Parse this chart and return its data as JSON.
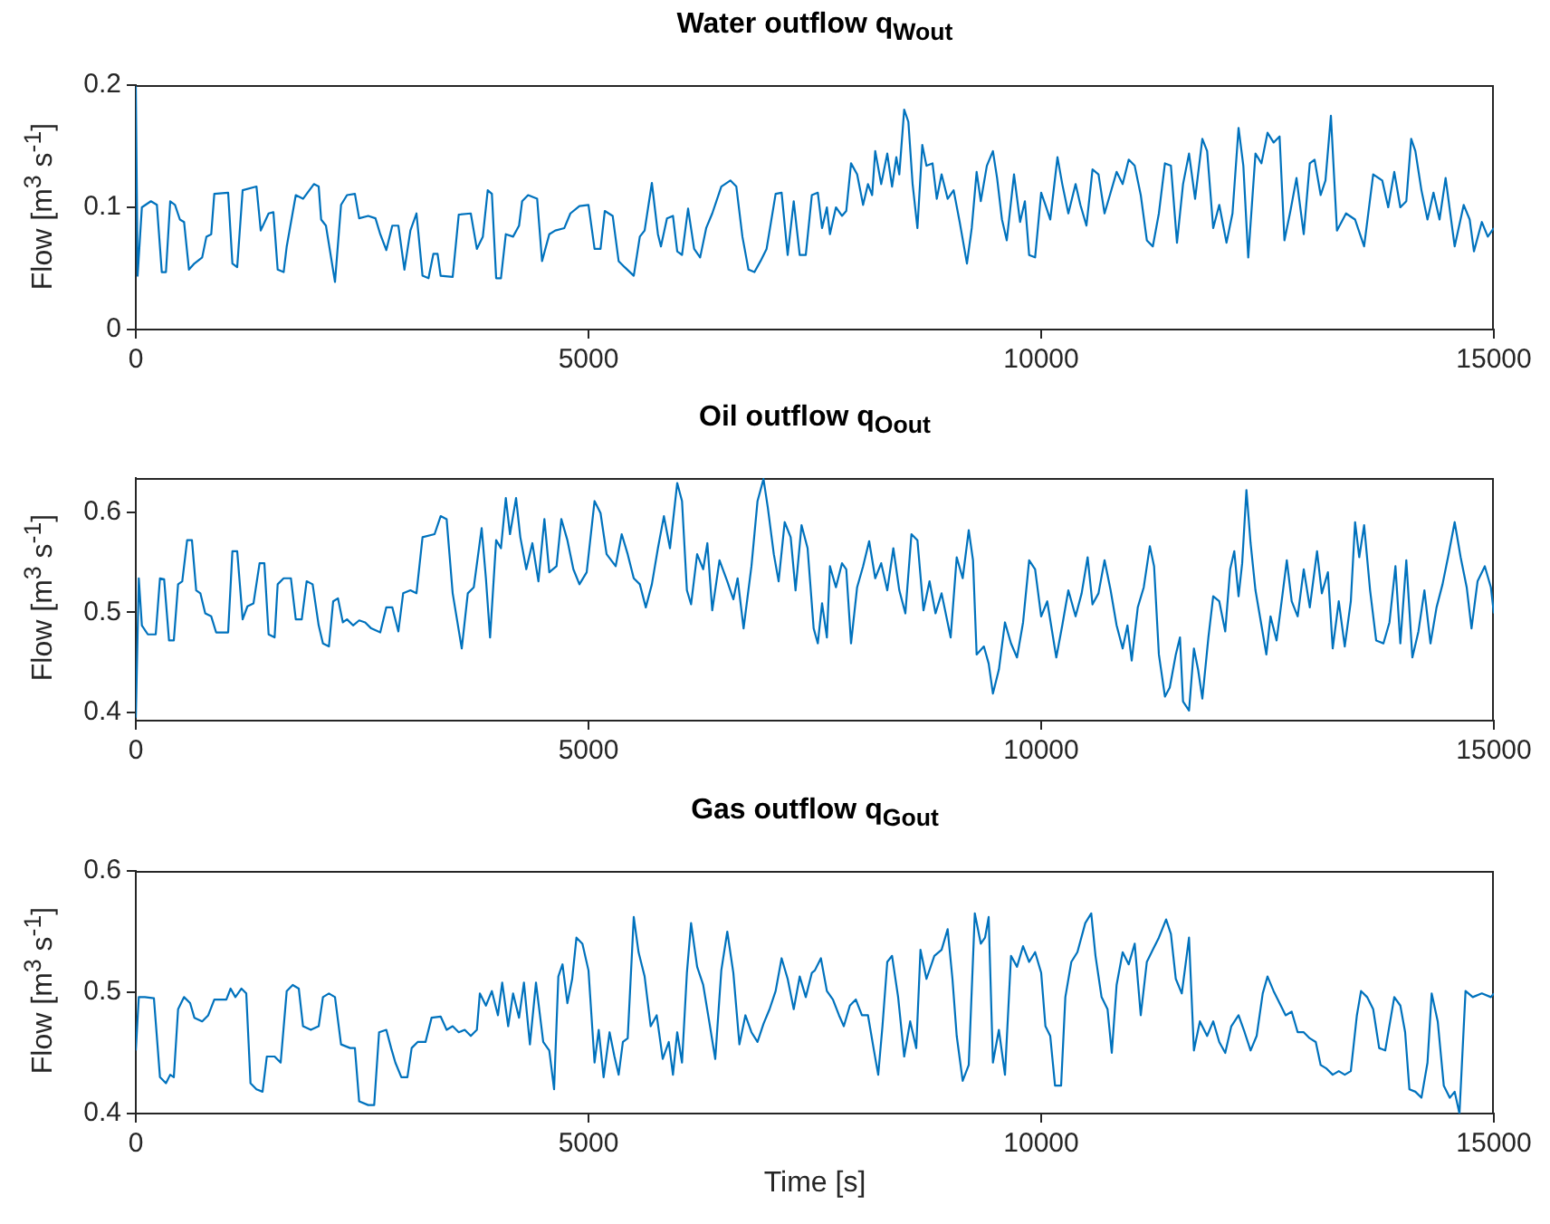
{
  "chart_data": [
    {
      "type": "line",
      "title": "Water outflow q$_{Wout}$",
      "ylabel": "Flow [m$^{3}$ s$^{-1}$]",
      "color": "#0072bd",
      "xlim": [
        0,
        15000
      ],
      "xticks": [
        0,
        5000,
        10000,
        15000
      ],
      "ylim": [
        0,
        0.2
      ],
      "yticks": [
        0,
        0.1,
        0.2
      ],
      "grid": false,
      "x": [
        0,
        20,
        67,
        167,
        233,
        287,
        333,
        380,
        433,
        487,
        533,
        587,
        647,
        733,
        780,
        833,
        867,
        1020,
        1067,
        1120,
        1180,
        1333,
        1380,
        1467,
        1520,
        1567,
        1633,
        1667,
        1767,
        1847,
        1967,
        2020,
        2047,
        2100,
        2200,
        2267,
        2333,
        2420,
        2467,
        2567,
        2647,
        2700,
        2767,
        2833,
        2900,
        2967,
        3033,
        3100,
        3167,
        3233,
        3287,
        3333,
        3367,
        3500,
        3567,
        3700,
        3767,
        3833,
        3887,
        3933,
        3980,
        4033,
        4087,
        4167,
        4233,
        4267,
        4333,
        4433,
        4487,
        4567,
        4633,
        4733,
        4800,
        4900,
        5000,
        5067,
        5133,
        5180,
        5267,
        5333,
        5400,
        5500,
        5567,
        5620,
        5700,
        5767,
        5800,
        5867,
        5933,
        5980,
        6033,
        6100,
        6167,
        6233,
        6300,
        6367,
        6467,
        6567,
        6633,
        6700,
        6767,
        6833,
        6900,
        6967,
        7067,
        7133,
        7200,
        7267,
        7333,
        7400,
        7467,
        7533,
        7580,
        7633,
        7667,
        7733,
        7800,
        7847,
        7900,
        7967,
        8033,
        8087,
        8133,
        8167,
        8233,
        8300,
        8353,
        8400,
        8433,
        8487,
        8533,
        8580,
        8633,
        8687,
        8733,
        8800,
        8847,
        8900,
        8967,
        9033,
        9100,
        9180,
        9233,
        9287,
        9333,
        9400,
        9467,
        9513,
        9567,
        9620,
        9700,
        9767,
        9820,
        9867,
        9933,
        10000,
        10047,
        10100,
        10180,
        10233,
        10300,
        10380,
        10433,
        10500,
        10567,
        10633,
        10700,
        10767,
        10833,
        10900,
        10967,
        11033,
        11100,
        11167,
        11233,
        11300,
        11367,
        11433,
        11500,
        11567,
        11633,
        11700,
        11780,
        11833,
        11900,
        11967,
        12047,
        12113,
        12180,
        12233,
        12287,
        12367,
        12433,
        12500,
        12567,
        12633,
        12687,
        12753,
        12820,
        12900,
        12967,
        13020,
        13087,
        13140,
        13200,
        13267,
        13367,
        13467,
        13567,
        13667,
        13767,
        13833,
        13900,
        13967,
        14033,
        14087,
        14133,
        14200,
        14267,
        14333,
        14400,
        14467,
        14567,
        14667,
        14733,
        14780,
        14867,
        14933,
        15000
      ],
      "values": [
        0.199,
        0.044,
        0.1,
        0.105,
        0.102,
        0.047,
        0.047,
        0.105,
        0.102,
        0.09,
        0.088,
        0.049,
        0.054,
        0.059,
        0.076,
        0.078,
        0.111,
        0.112,
        0.054,
        0.051,
        0.114,
        0.117,
        0.081,
        0.095,
        0.096,
        0.049,
        0.047,
        0.068,
        0.11,
        0.107,
        0.119,
        0.117,
        0.09,
        0.085,
        0.039,
        0.102,
        0.11,
        0.111,
        0.091,
        0.093,
        0.091,
        0.078,
        0.065,
        0.085,
        0.085,
        0.049,
        0.081,
        0.095,
        0.044,
        0.042,
        0.062,
        0.062,
        0.044,
        0.043,
        0.094,
        0.095,
        0.066,
        0.076,
        0.114,
        0.111,
        0.042,
        0.042,
        0.078,
        0.076,
        0.085,
        0.105,
        0.11,
        0.107,
        0.056,
        0.078,
        0.081,
        0.083,
        0.095,
        0.101,
        0.102,
        0.066,
        0.066,
        0.097,
        0.093,
        0.056,
        0.051,
        0.044,
        0.076,
        0.081,
        0.12,
        0.078,
        0.068,
        0.091,
        0.093,
        0.064,
        0.061,
        0.099,
        0.066,
        0.059,
        0.083,
        0.095,
        0.117,
        0.122,
        0.117,
        0.076,
        0.049,
        0.047,
        0.056,
        0.066,
        0.111,
        0.112,
        0.061,
        0.105,
        0.061,
        0.061,
        0.11,
        0.112,
        0.083,
        0.1,
        0.078,
        0.1,
        0.093,
        0.097,
        0.136,
        0.127,
        0.102,
        0.119,
        0.11,
        0.146,
        0.119,
        0.144,
        0.117,
        0.141,
        0.127,
        0.18,
        0.17,
        0.119,
        0.083,
        0.151,
        0.134,
        0.136,
        0.107,
        0.127,
        0.107,
        0.114,
        0.088,
        0.054,
        0.083,
        0.129,
        0.105,
        0.134,
        0.146,
        0.124,
        0.09,
        0.073,
        0.127,
        0.088,
        0.105,
        0.061,
        0.059,
        0.112,
        0.102,
        0.09,
        0.141,
        0.119,
        0.095,
        0.119,
        0.102,
        0.085,
        0.131,
        0.127,
        0.095,
        0.112,
        0.129,
        0.119,
        0.139,
        0.134,
        0.11,
        0.073,
        0.068,
        0.095,
        0.136,
        0.134,
        0.071,
        0.119,
        0.144,
        0.107,
        0.156,
        0.146,
        0.083,
        0.102,
        0.071,
        0.095,
        0.165,
        0.134,
        0.059,
        0.144,
        0.136,
        0.161,
        0.153,
        0.158,
        0.073,
        0.097,
        0.124,
        0.078,
        0.136,
        0.139,
        0.11,
        0.122,
        0.175,
        0.081,
        0.095,
        0.09,
        0.068,
        0.127,
        0.122,
        0.1,
        0.129,
        0.1,
        0.105,
        0.156,
        0.146,
        0.114,
        0.09,
        0.112,
        0.09,
        0.124,
        0.068,
        0.102,
        0.09,
        0.064,
        0.088,
        0.076,
        0.083
      ]
    },
    {
      "type": "line",
      "title": "Oil outflow q$_{Oout}$",
      "ylabel": "Flow [m$^{3}$ s$^{-1}$]",
      "color": "#0072bd",
      "xlim": [
        0,
        15000
      ],
      "xticks": [
        0,
        5000,
        10000,
        15000
      ],
      "ylim": [
        0.392,
        0.634
      ],
      "yticks": [
        0.4,
        0.5,
        0.6
      ],
      "grid": false,
      "x": [
        0,
        33,
        67,
        133,
        220,
        267,
        313,
        367,
        420,
        467,
        513,
        567,
        620,
        667,
        713,
        767,
        833,
        887,
        1020,
        1067,
        1120,
        1180,
        1233,
        1300,
        1367,
        1420,
        1467,
        1533,
        1567,
        1633,
        1713,
        1767,
        1833,
        1887,
        1953,
        2020,
        2067,
        2133,
        2180,
        2233,
        2287,
        2333,
        2400,
        2467,
        2533,
        2600,
        2700,
        2767,
        2833,
        2900,
        2953,
        3033,
        3100,
        3167,
        3300,
        3367,
        3433,
        3500,
        3600,
        3667,
        3733,
        3820,
        3867,
        3913,
        3980,
        4033,
        4087,
        4133,
        4200,
        4247,
        4313,
        4380,
        4447,
        4513,
        4567,
        4647,
        4700,
        4767,
        4833,
        4900,
        4980,
        5067,
        5133,
        5200,
        5300,
        5367,
        5433,
        5500,
        5567,
        5633,
        5700,
        5767,
        5833,
        5900,
        5980,
        6033,
        6087,
        6133,
        6200,
        6267,
        6313,
        6367,
        6447,
        6533,
        6600,
        6647,
        6713,
        6800,
        6867,
        6933,
        6980,
        7047,
        7100,
        7167,
        7233,
        7287,
        7353,
        7420,
        7487,
        7533,
        7580,
        7633,
        7667,
        7733,
        7800,
        7847,
        7900,
        7967,
        8033,
        8100,
        8167,
        8233,
        8300,
        8367,
        8433,
        8500,
        8567,
        8633,
        8700,
        8767,
        8833,
        8900,
        9000,
        9067,
        9133,
        9200,
        9247,
        9287,
        9367,
        9420,
        9467,
        9533,
        9600,
        9667,
        9733,
        9800,
        9867,
        9933,
        10000,
        10067,
        10167,
        10233,
        10300,
        10380,
        10447,
        10513,
        10567,
        10633,
        10700,
        10767,
        10833,
        10900,
        10953,
        11000,
        11067,
        11133,
        11200,
        11247,
        11300,
        11367,
        11420,
        11487,
        11533,
        11567,
        11633,
        11687,
        11733,
        11780,
        11847,
        11900,
        11967,
        12033,
        12087,
        12133,
        12180,
        12220,
        12267,
        12313,
        12367,
        12433,
        12487,
        12533,
        12600,
        12667,
        12713,
        12767,
        12833,
        12900,
        12967,
        13047,
        13100,
        13167,
        13220,
        13287,
        13353,
        13420,
        13467,
        13513,
        13567,
        13633,
        13700,
        13780,
        13847,
        13913,
        13967,
        14033,
        14100,
        14167,
        14233,
        14300,
        14367,
        14433,
        14500,
        14567,
        14633,
        14700,
        14753,
        14820,
        14900,
        14967,
        15000
      ],
      "values": [
        0.395,
        0.534,
        0.487,
        0.478,
        0.478,
        0.534,
        0.533,
        0.472,
        0.472,
        0.528,
        0.531,
        0.572,
        0.572,
        0.522,
        0.519,
        0.499,
        0.496,
        0.48,
        0.48,
        0.561,
        0.561,
        0.493,
        0.506,
        0.509,
        0.549,
        0.549,
        0.478,
        0.475,
        0.528,
        0.534,
        0.534,
        0.493,
        0.493,
        0.531,
        0.528,
        0.487,
        0.469,
        0.466,
        0.511,
        0.514,
        0.49,
        0.493,
        0.487,
        0.492,
        0.49,
        0.484,
        0.48,
        0.505,
        0.505,
        0.481,
        0.519,
        0.522,
        0.519,
        0.575,
        0.578,
        0.596,
        0.593,
        0.519,
        0.464,
        0.519,
        0.525,
        0.584,
        0.534,
        0.475,
        0.572,
        0.564,
        0.614,
        0.578,
        0.614,
        0.575,
        0.543,
        0.569,
        0.531,
        0.593,
        0.54,
        0.546,
        0.593,
        0.572,
        0.543,
        0.528,
        0.54,
        0.611,
        0.599,
        0.558,
        0.546,
        0.578,
        0.558,
        0.534,
        0.528,
        0.505,
        0.528,
        0.564,
        0.596,
        0.564,
        0.629,
        0.611,
        0.522,
        0.508,
        0.558,
        0.543,
        0.569,
        0.502,
        0.552,
        0.531,
        0.513,
        0.534,
        0.484,
        0.546,
        0.611,
        0.633,
        0.605,
        0.558,
        0.531,
        0.59,
        0.575,
        0.522,
        0.587,
        0.564,
        0.484,
        0.469,
        0.509,
        0.475,
        0.546,
        0.525,
        0.549,
        0.543,
        0.469,
        0.525,
        0.546,
        0.571,
        0.534,
        0.549,
        0.522,
        0.564,
        0.522,
        0.499,
        0.578,
        0.572,
        0.502,
        0.531,
        0.499,
        0.519,
        0.475,
        0.555,
        0.534,
        0.582,
        0.552,
        0.458,
        0.466,
        0.449,
        0.419,
        0.443,
        0.49,
        0.469,
        0.455,
        0.49,
        0.552,
        0.543,
        0.496,
        0.511,
        0.455,
        0.487,
        0.522,
        0.496,
        0.519,
        0.555,
        0.508,
        0.519,
        0.552,
        0.522,
        0.487,
        0.464,
        0.487,
        0.452,
        0.505,
        0.525,
        0.566,
        0.546,
        0.458,
        0.416,
        0.425,
        0.458,
        0.475,
        0.411,
        0.402,
        0.464,
        0.443,
        0.414,
        0.475,
        0.516,
        0.511,
        0.481,
        0.543,
        0.561,
        0.516,
        0.549,
        0.622,
        0.569,
        0.522,
        0.487,
        0.458,
        0.496,
        0.472,
        0.519,
        0.552,
        0.511,
        0.496,
        0.543,
        0.505,
        0.561,
        0.519,
        0.54,
        0.464,
        0.511,
        0.466,
        0.511,
        0.59,
        0.555,
        0.587,
        0.522,
        0.472,
        0.469,
        0.49,
        0.546,
        0.469,
        0.552,
        0.455,
        0.481,
        0.522,
        0.469,
        0.505,
        0.528,
        0.558,
        0.59,
        0.555,
        0.525,
        0.484,
        0.531,
        0.546,
        0.525,
        0.499
      ]
    },
    {
      "type": "line",
      "title": "Gas outflow q$_{Gout}$",
      "ylabel": "Flow [m$^{3}$ s$^{-1}$]",
      "xlabel": "Time [s]",
      "color": "#0072bd",
      "xlim": [
        0,
        15000
      ],
      "xticks": [
        0,
        5000,
        10000,
        15000
      ],
      "ylim": [
        0.4,
        0.6
      ],
      "yticks": [
        0.4,
        0.5,
        0.6
      ],
      "grid": false,
      "x": [
        0,
        33,
        100,
        200,
        267,
        333,
        380,
        420,
        467,
        533,
        600,
        647,
        733,
        800,
        867,
        1000,
        1047,
        1100,
        1167,
        1220,
        1267,
        1333,
        1400,
        1447,
        1533,
        1600,
        1667,
        1733,
        1800,
        1847,
        1933,
        2020,
        2067,
        2133,
        2200,
        2267,
        2367,
        2420,
        2467,
        2567,
        2633,
        2687,
        2767,
        2820,
        2867,
        2933,
        3000,
        3047,
        3113,
        3200,
        3267,
        3367,
        3433,
        3500,
        3567,
        3633,
        3700,
        3767,
        3800,
        3867,
        3933,
        4000,
        4047,
        4113,
        4167,
        4233,
        4287,
        4353,
        4420,
        4500,
        4567,
        4620,
        4667,
        4713,
        4767,
        4820,
        4867,
        4933,
        5000,
        5067,
        5113,
        5167,
        5233,
        5287,
        5333,
        5380,
        5433,
        5500,
        5553,
        5620,
        5687,
        5753,
        5820,
        5887,
        5933,
        5980,
        6033,
        6087,
        6133,
        6200,
        6267,
        6333,
        6400,
        6467,
        6533,
        6600,
        6667,
        6733,
        6800,
        6867,
        6933,
        7000,
        7067,
        7133,
        7200,
        7267,
        7333,
        7400,
        7467,
        7500,
        7567,
        7633,
        7700,
        7767,
        7820,
        7887,
        7953,
        8020,
        8087,
        8153,
        8200,
        8247,
        8300,
        8353,
        8420,
        8487,
        8553,
        8620,
        8667,
        8733,
        8820,
        8900,
        8967,
        9020,
        9067,
        9133,
        9200,
        9267,
        9333,
        9380,
        9420,
        9467,
        9533,
        9600,
        9667,
        9733,
        9800,
        9867,
        9933,
        10000,
        10047,
        10100,
        10153,
        10220,
        10267,
        10333,
        10400,
        10487,
        10553,
        10600,
        10667,
        10733,
        10780,
        10833,
        10900,
        10967,
        11033,
        11100,
        11167,
        11233,
        11300,
        11380,
        11433,
        11487,
        11553,
        11633,
        11687,
        11753,
        11833,
        11900,
        11967,
        12033,
        12100,
        12180,
        12247,
        12313,
        12380,
        12447,
        12500,
        12567,
        12633,
        12700,
        12767,
        12833,
        12900,
        12967,
        13033,
        13087,
        13153,
        13220,
        13287,
        13353,
        13420,
        13487,
        13533,
        13600,
        13667,
        13733,
        13800,
        13900,
        13967,
        14020,
        14067,
        14133,
        14200,
        14267,
        14313,
        14380,
        14447,
        14513,
        14567,
        14620,
        14687,
        14767,
        14867,
        14967,
        15000
      ],
      "values": [
        0.452,
        0.496,
        0.496,
        0.495,
        0.43,
        0.425,
        0.432,
        0.43,
        0.486,
        0.496,
        0.491,
        0.479,
        0.476,
        0.481,
        0.494,
        0.494,
        0.503,
        0.496,
        0.503,
        0.499,
        0.425,
        0.42,
        0.418,
        0.447,
        0.447,
        0.442,
        0.501,
        0.506,
        0.503,
        0.472,
        0.469,
        0.472,
        0.496,
        0.499,
        0.496,
        0.457,
        0.454,
        0.454,
        0.41,
        0.407,
        0.407,
        0.467,
        0.469,
        0.454,
        0.442,
        0.43,
        0.43,
        0.454,
        0.459,
        0.459,
        0.479,
        0.48,
        0.469,
        0.472,
        0.467,
        0.469,
        0.464,
        0.469,
        0.499,
        0.489,
        0.501,
        0.481,
        0.508,
        0.472,
        0.499,
        0.479,
        0.508,
        0.457,
        0.508,
        0.459,
        0.452,
        0.42,
        0.513,
        0.523,
        0.491,
        0.511,
        0.545,
        0.54,
        0.518,
        0.442,
        0.469,
        0.43,
        0.467,
        0.447,
        0.432,
        0.459,
        0.462,
        0.562,
        0.533,
        0.513,
        0.472,
        0.481,
        0.445,
        0.459,
        0.432,
        0.467,
        0.442,
        0.516,
        0.557,
        0.521,
        0.506,
        0.476,
        0.445,
        0.518,
        0.55,
        0.516,
        0.457,
        0.481,
        0.467,
        0.459,
        0.474,
        0.486,
        0.501,
        0.528,
        0.511,
        0.486,
        0.513,
        0.496,
        0.516,
        0.518,
        0.528,
        0.501,
        0.494,
        0.481,
        0.472,
        0.489,
        0.494,
        0.481,
        0.481,
        0.452,
        0.432,
        0.472,
        0.525,
        0.53,
        0.496,
        0.447,
        0.476,
        0.454,
        0.535,
        0.511,
        0.53,
        0.535,
        0.552,
        0.511,
        0.464,
        0.427,
        0.44,
        0.565,
        0.54,
        0.545,
        0.562,
        0.442,
        0.469,
        0.432,
        0.53,
        0.521,
        0.538,
        0.525,
        0.533,
        0.516,
        0.472,
        0.464,
        0.423,
        0.423,
        0.496,
        0.525,
        0.533,
        0.557,
        0.565,
        0.53,
        0.496,
        0.486,
        0.45,
        0.506,
        0.533,
        0.523,
        0.54,
        0.481,
        0.525,
        0.535,
        0.545,
        0.56,
        0.548,
        0.511,
        0.499,
        0.545,
        0.452,
        0.476,
        0.464,
        0.476,
        0.459,
        0.45,
        0.472,
        0.481,
        0.467,
        0.452,
        0.464,
        0.499,
        0.513,
        0.501,
        0.491,
        0.481,
        0.484,
        0.467,
        0.467,
        0.462,
        0.459,
        0.44,
        0.437,
        0.432,
        0.435,
        0.432,
        0.435,
        0.481,
        0.501,
        0.496,
        0.486,
        0.454,
        0.452,
        0.496,
        0.489,
        0.467,
        0.42,
        0.418,
        0.413,
        0.442,
        0.499,
        0.476,
        0.423,
        0.413,
        0.418,
        0.4,
        0.501,
        0.496,
        0.499,
        0.496,
        0.499
      ]
    }
  ]
}
